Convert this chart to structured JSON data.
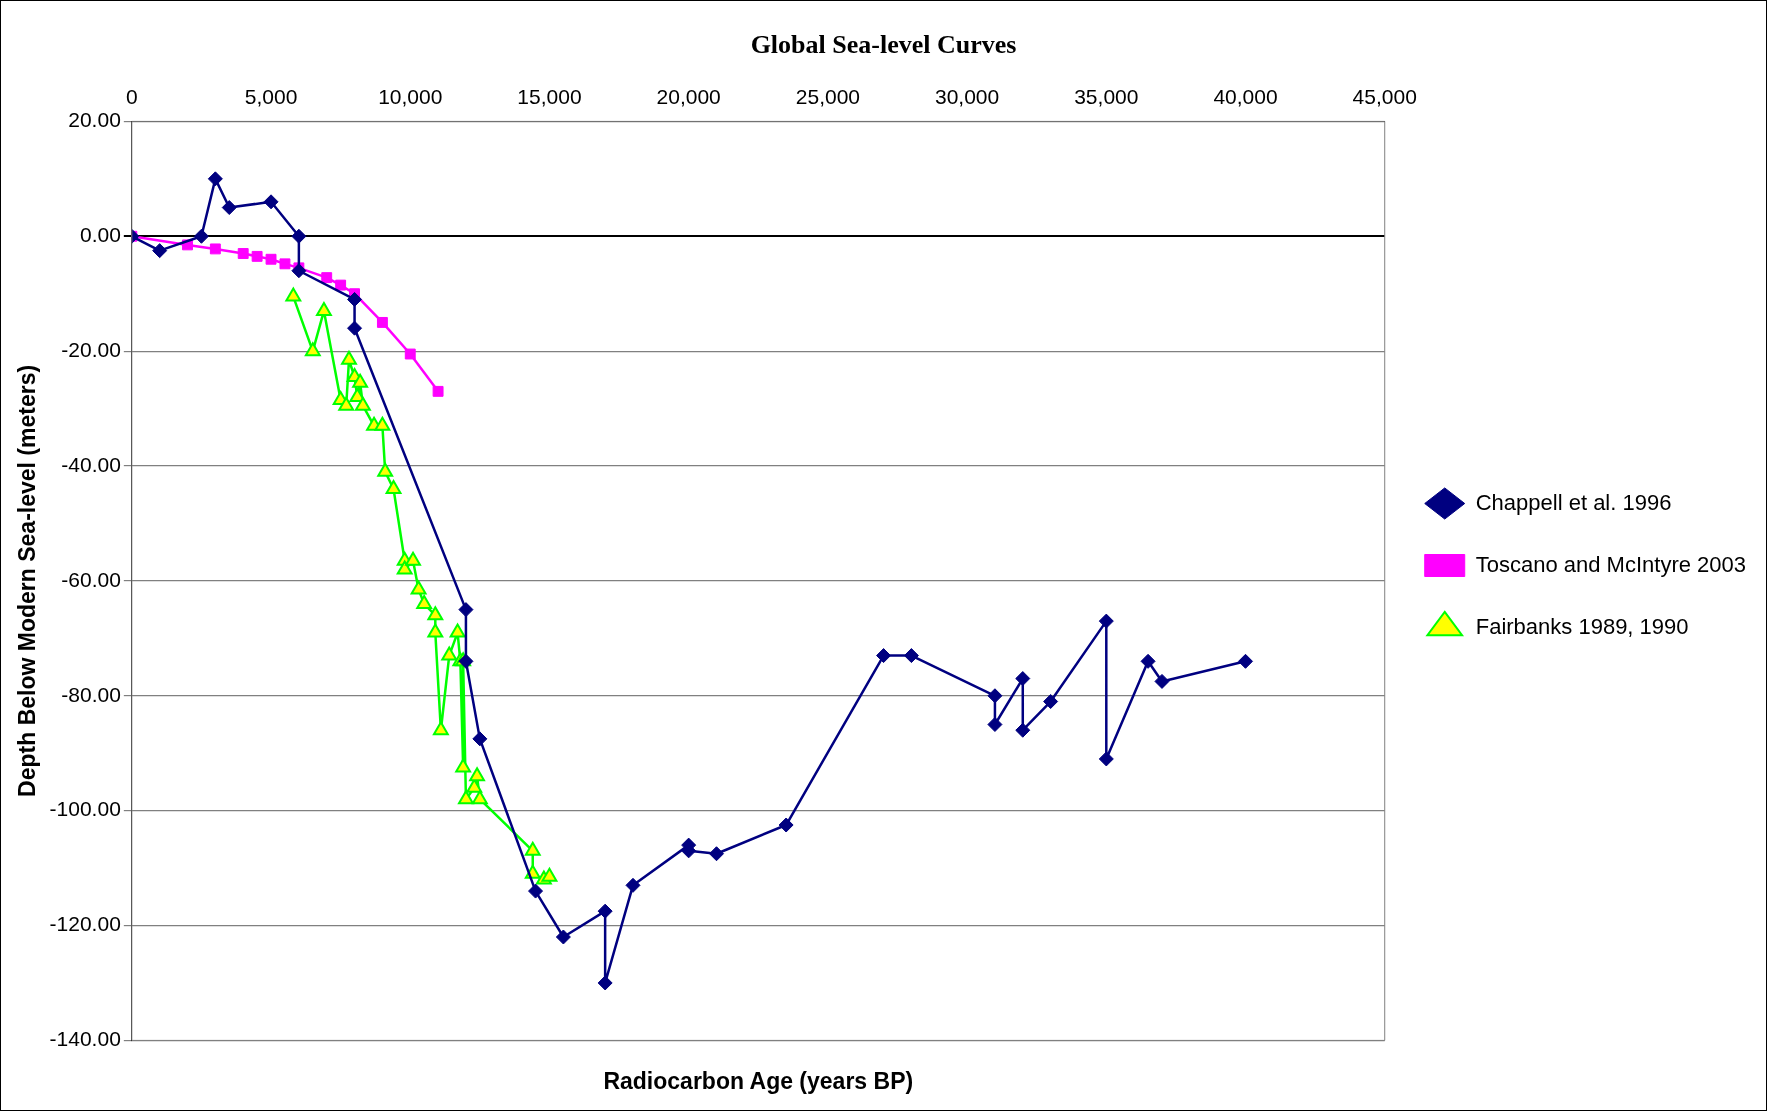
{
  "chart_data": {
    "type": "line",
    "title": "Global Sea-level Curves",
    "xlabel": "Radiocarbon Age (years BP)",
    "ylabel": "Depth Below Modern Sea-level (meters)",
    "xlim": [
      0,
      45000
    ],
    "xticks": [
      {
        "value": 0,
        "label": "0"
      },
      {
        "value": 5000,
        "label": "5,000"
      },
      {
        "value": 10000,
        "label": "10,000"
      },
      {
        "value": 15000,
        "label": "15,000"
      },
      {
        "value": 20000,
        "label": "20,000"
      },
      {
        "value": 25000,
        "label": "25,000"
      },
      {
        "value": 30000,
        "label": "30,000"
      },
      {
        "value": 35000,
        "label": "35,000"
      },
      {
        "value": 40000,
        "label": "40,000"
      },
      {
        "value": 45000,
        "label": "45,000"
      }
    ],
    "ylim": [
      -140,
      20
    ],
    "yticks": [
      {
        "value": -140,
        "label": "-140.00"
      },
      {
        "value": -120,
        "label": "-120.00"
      },
      {
        "value": -100,
        "label": "-100.00"
      },
      {
        "value": -80,
        "label": "-80.00"
      },
      {
        "value": -60,
        "label": "-60.00"
      },
      {
        "value": -40,
        "label": "-40.00"
      },
      {
        "value": -20,
        "label": "-20.00"
      },
      {
        "value": 0,
        "label": "0.00"
      },
      {
        "value": 20,
        "label": "20.00"
      }
    ],
    "grid": "y",
    "legend": "right",
    "line_style": "solid",
    "series": [
      {
        "name": "Chappell et al. 1996",
        "color": "#000080",
        "marker": "diamond",
        "x": [
          0,
          1000,
          2500,
          3000,
          3500,
          5000,
          6000,
          6000,
          8000,
          8000,
          12000,
          12000,
          12500,
          14500,
          15500,
          17000,
          17000,
          18000,
          20000,
          20000,
          21000,
          23500,
          27000,
          28000,
          31000,
          31000,
          32000,
          32000,
          33000,
          35000,
          35000,
          36500,
          37000,
          40000
        ],
        "values": [
          0,
          -2.5,
          0,
          10,
          5,
          6,
          0,
          -6,
          -11,
          -16,
          -65,
          -74,
          -87.5,
          -114,
          -122,
          -117.5,
          -130,
          -113,
          -106,
          -107,
          -107.5,
          -102.5,
          -73,
          -73,
          -80,
          -85,
          -77,
          -86,
          -81,
          -67,
          -91,
          -74,
          -77.5,
          -74
        ]
      },
      {
        "name": "Toscano and McIntyre 2003",
        "color": "#ff00ff",
        "marker": "square",
        "x": [
          0,
          2000,
          3000,
          4000,
          4500,
          5000,
          5500,
          6000,
          7000,
          7500,
          8000,
          9000,
          10000,
          11000
        ],
        "values": [
          0,
          -1.5,
          -2.2,
          -3,
          -3.5,
          -4,
          -4.8,
          -5.5,
          -7.2,
          -8.5,
          -10,
          -15,
          -20.5,
          -27
        ]
      },
      {
        "name": "Fairbanks 1989, 1990",
        "color": "#00ff00",
        "marker": "triangle",
        "x": [
          5800,
          6500,
          6900,
          7500,
          7700,
          7800,
          8000,
          8100,
          8200,
          8300,
          8700,
          9000,
          9100,
          9400,
          9800,
          9800,
          10100,
          10300,
          10500,
          10900,
          10900,
          11100,
          11400,
          11700,
          11800,
          11900,
          11900,
          12000,
          12300,
          12400,
          12500,
          14400,
          14400,
          14800,
          15000
        ],
        "values": [
          -10.5,
          -20,
          -13,
          -28.5,
          -29.5,
          -21.5,
          -24.5,
          -28,
          -25.5,
          -29.5,
          -33,
          -33,
          -41,
          -44,
          -56.5,
          -58,
          -56.5,
          -61.5,
          -64,
          -66,
          -69,
          -86,
          -73,
          -69,
          -74,
          -92.5,
          -74,
          -98,
          -96,
          -94,
          -98,
          -107,
          -111,
          -112,
          -111.5
        ]
      }
    ]
  }
}
